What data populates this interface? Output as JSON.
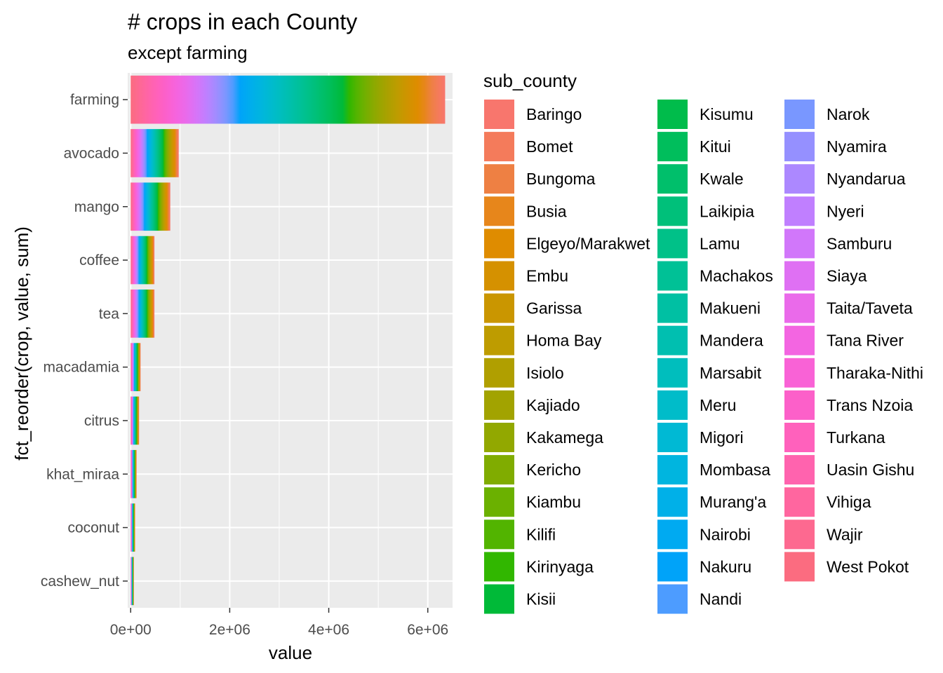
{
  "chart_data": {
    "type": "bar",
    "orientation": "horizontal",
    "stacked": true,
    "title": "# crops in each County",
    "subtitle": "except farming",
    "xlabel": "value",
    "ylabel": "fct_reorder(crop, value, sum)",
    "xlim": [
      -60000,
      6500000
    ],
    "x_ticks": [
      0,
      2000000,
      4000000,
      6000000
    ],
    "x_tick_labels": [
      "0e+00",
      "2e+06",
      "4e+06",
      "6e+06"
    ],
    "categories": [
      "farming",
      "avocado",
      "mango",
      "coffee",
      "tea",
      "macadamia",
      "citrus",
      "khat_miraa",
      "coconut",
      "cashew_nut"
    ],
    "totals": [
      6350000,
      970000,
      800000,
      480000,
      480000,
      200000,
      170000,
      120000,
      90000,
      65000
    ],
    "grid": true,
    "legend": {
      "title": "sub_county",
      "position": "right",
      "columns": 3,
      "entries": [
        "Baringo",
        "Bomet",
        "Bungoma",
        "Busia",
        "Elgeyo/Marakwet",
        "Embu",
        "Garissa",
        "Homa Bay",
        "Isiolo",
        "Kajiado",
        "Kakamega",
        "Kericho",
        "Kiambu",
        "Kilifi",
        "Kirinyaga",
        "Kisii",
        "Kisumu",
        "Kitui",
        "Kwale",
        "Laikipia",
        "Lamu",
        "Machakos",
        "Makueni",
        "Mandera",
        "Marsabit",
        "Meru",
        "Migori",
        "Mombasa",
        "Murang'a",
        "Nairobi",
        "Nakuru",
        "Nandi",
        "Narok",
        "Nyamira",
        "Nyandarua",
        "Nyeri",
        "Samburu",
        "Siaya",
        "Taita/Taveta",
        "Tana River",
        "Tharaka-Nithi",
        "Trans Nzoia",
        "Turkana",
        "Uasin Gishu",
        "Vihiga",
        "Wajir",
        "West Pokot"
      ],
      "colors": [
        "#F8766D",
        "#F47B5B",
        "#EE8043",
        "#E7861B",
        "#DF8C00",
        "#D59100",
        "#CA9600",
        "#BE9C00",
        "#B09F00",
        "#A2A300",
        "#92A800",
        "#80AC00",
        "#6BB100",
        "#52B400",
        "#31B700",
        "#00BA38",
        "#00BC4B",
        "#00BE5C",
        "#00BF6B",
        "#00C07A",
        "#00C188",
        "#00C196",
        "#00C0A3",
        "#00BFB0",
        "#00BEBD",
        "#00BCC9",
        "#00B9D4",
        "#00B5DF",
        "#00B0E8",
        "#00AAF1",
        "#00A3F9",
        "#4D9CFF",
        "#7997FF",
        "#9590FF",
        "#AC88FF",
        "#C07FFF",
        "#D177FA",
        "#DF70F3",
        "#EA6AEA",
        "#F365E1",
        "#F962D6",
        "#FC60C9",
        "#FF61BC",
        "#FF63AE",
        "#FF669F",
        "#FD6990",
        "#FB6C80"
      ]
    }
  }
}
